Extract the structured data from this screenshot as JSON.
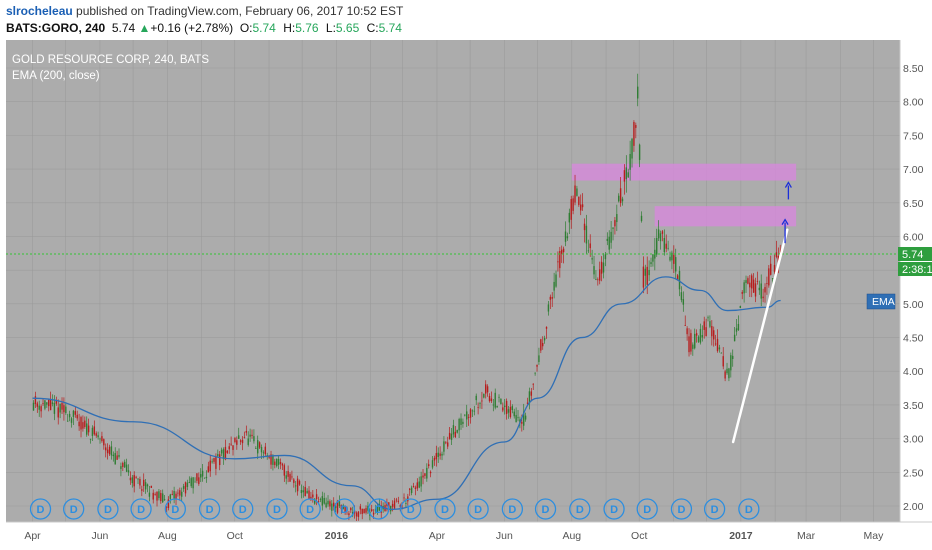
{
  "header": {
    "author": "slrocheleau",
    "published_text": " published on TradingView.com, February 06, 2017 10:52 EST",
    "symbol": "BATS:GORO, 240",
    "last": "5.74",
    "change_arrow": "▲",
    "change": "+0.16 (+2.78%)",
    "o_label": "O:",
    "o_value": "5.74",
    "h_label": "H:",
    "h_value": "5.76",
    "l_label": "L:",
    "l_value": "5.65",
    "c_label": "C:",
    "c_value": "5.74"
  },
  "legend": {
    "title": "GOLD RESOURCE CORP, 240, BATS",
    "indicator": "EMA (200, close)"
  },
  "price_tags": {
    "last": "5.74",
    "countdown": "2:38:1",
    "ema_tag": "EMA"
  },
  "event_marker": "D",
  "colors": {
    "plot_bg": "#acacac",
    "grid": "#9b9b9b",
    "up_candle": "#2e7d32",
    "down_candle": "#b71c1c",
    "ema": "#2f6fb5",
    "zone": "#d48bd8",
    "trendline": "#ffffff",
    "arrow": "#1c2fd9",
    "last_price_line": "#35c335",
    "marker": "#2c8ee0"
  },
  "chart_data": {
    "type": "candlestick",
    "title": "GOLD RESOURCE CORP, 240, BATS",
    "indicator": "EMA (200, close)",
    "x_ticks": [
      "Apr",
      "Jun",
      "Aug",
      "Oct",
      "2016",
      "Apr",
      "Jun",
      "Aug",
      "Oct",
      "2017",
      "Mar",
      "May"
    ],
    "y_ticks": [
      "2.00",
      "2.50",
      "3.00",
      "3.50",
      "4.00",
      "4.50",
      "5.00",
      "5.50",
      "6.00",
      "6.50",
      "7.00",
      "7.50",
      "8.00",
      "8.50"
    ],
    "ylim": [
      1.85,
      8.7
    ],
    "last_price": 5.74,
    "price_path": [
      {
        "date": "2015-04-01",
        "price": 3.55
      },
      {
        "date": "2015-05-01",
        "price": 3.4
      },
      {
        "date": "2015-06-01",
        "price": 3.0
      },
      {
        "date": "2015-07-01",
        "price": 2.4
      },
      {
        "date": "2015-08-01",
        "price": 2.05
      },
      {
        "date": "2015-09-01",
        "price": 2.45
      },
      {
        "date": "2015-10-10",
        "price": 3.05
      },
      {
        "date": "2015-11-10",
        "price": 2.6
      },
      {
        "date": "2015-12-10",
        "price": 2.1
      },
      {
        "date": "2016-01-20",
        "price": 1.9
      },
      {
        "date": "2016-03-01",
        "price": 2.05
      },
      {
        "date": "2016-03-20",
        "price": 2.4
      },
      {
        "date": "2016-04-20",
        "price": 3.2
      },
      {
        "date": "2016-05-15",
        "price": 3.7
      },
      {
        "date": "2016-06-01",
        "price": 3.45
      },
      {
        "date": "2016-06-20",
        "price": 3.3
      },
      {
        "date": "2016-07-10",
        "price": 4.8
      },
      {
        "date": "2016-08-05",
        "price": 6.7
      },
      {
        "date": "2016-08-25",
        "price": 5.3
      },
      {
        "date": "2016-09-10",
        "price": 6.3
      },
      {
        "date": "2016-09-25",
        "price": 7.3
      },
      {
        "date": "2016-09-30",
        "price": 8.1
      },
      {
        "date": "2016-10-05",
        "price": 5.3
      },
      {
        "date": "2016-10-20",
        "price": 6.0
      },
      {
        "date": "2016-11-05",
        "price": 5.5
      },
      {
        "date": "2016-11-15",
        "price": 4.4
      },
      {
        "date": "2016-12-05",
        "price": 4.7
      },
      {
        "date": "2016-12-20",
        "price": 3.9
      },
      {
        "date": "2017-01-05",
        "price": 5.3
      },
      {
        "date": "2017-01-20",
        "price": 5.2
      },
      {
        "date": "2017-02-06",
        "price": 5.74
      }
    ],
    "ema_200": [
      {
        "date": "2015-04-01",
        "value": 3.6
      },
      {
        "date": "2015-07-01",
        "value": 3.25
      },
      {
        "date": "2015-10-01",
        "value": 2.7
      },
      {
        "date": "2015-11-15",
        "value": 2.75
      },
      {
        "date": "2016-01-15",
        "value": 2.3
      },
      {
        "date": "2016-02-20",
        "value": 1.95
      },
      {
        "date": "2016-04-01",
        "value": 2.1
      },
      {
        "date": "2016-06-01",
        "value": 2.95
      },
      {
        "date": "2016-07-01",
        "value": 3.6
      },
      {
        "date": "2016-08-10",
        "value": 4.5
      },
      {
        "date": "2016-09-15",
        "value": 5.0
      },
      {
        "date": "2016-10-25",
        "value": 5.4
      },
      {
        "date": "2016-11-25",
        "value": 5.2
      },
      {
        "date": "2016-12-20",
        "value": 4.9
      },
      {
        "date": "2017-01-25",
        "value": 4.95
      },
      {
        "date": "2017-02-06",
        "value": 5.05
      }
    ],
    "resistance_zones": [
      {
        "from": "2016-08-01",
        "to": "2017-02-20",
        "low": 6.83,
        "high": 7.08
      },
      {
        "from": "2016-10-15",
        "to": "2017-02-20",
        "low": 6.15,
        "high": 6.45
      }
    ],
    "trendline": {
      "from": {
        "date": "2016-12-25",
        "price": 2.95
      },
      "to": {
        "date": "2017-02-12",
        "price": 6.1
      }
    },
    "arrows": [
      {
        "date": "2017-02-10",
        "from": 5.9,
        "to": 6.25
      },
      {
        "date": "2017-02-13",
        "from": 6.55,
        "to": 6.8
      }
    ],
    "dividend_markers": [
      "2015-04-01",
      "2015-05-01",
      "2015-06-01",
      "2015-07-01",
      "2015-08-01",
      "2015-09-01",
      "2015-10-01",
      "2015-11-01",
      "2015-12-01",
      "2016-01-01",
      "2016-02-01",
      "2016-03-01",
      "2016-04-01",
      "2016-05-01",
      "2016-06-01",
      "2016-07-01",
      "2016-08-01",
      "2016-09-01",
      "2016-10-01",
      "2016-11-01",
      "2016-12-01",
      "2017-01-01"
    ]
  }
}
